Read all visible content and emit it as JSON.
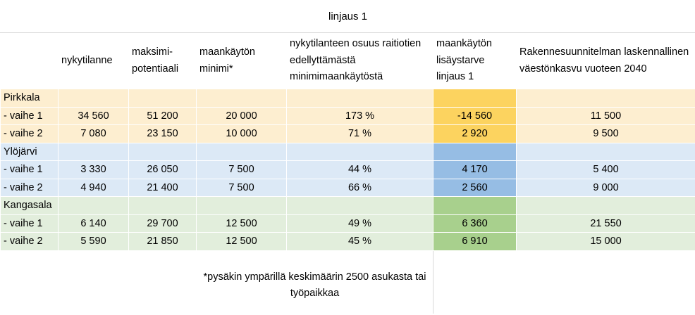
{
  "title": "linjaus 1",
  "headers": {
    "c1": "nykytilanne",
    "c2": "maksimi-potentiaali",
    "c3": "maankäytön minimi*",
    "c4": "nykytilanteen osuus raitiotien edellyttämästä minimimaankäytöstä",
    "c5": "maankäytön lisäystarve linjaus 1",
    "c6": "Rakennesuunnitelman laskennallinen väestönkasvu vuoteen 2040"
  },
  "groups": {
    "pirkkala": {
      "name": "Pirkkala",
      "rows": [
        {
          "label": "- vaihe 1",
          "c1": "34 560",
          "c2": "51 200",
          "c3": "20 000",
          "c4": "173 %",
          "c5": "-14 560",
          "c6": "11 500"
        },
        {
          "label": "- vaihe 2",
          "c1": "7 080",
          "c2": "23 150",
          "c3": "10 000",
          "c4": "71 %",
          "c5": "2 920",
          "c6": "9 500"
        }
      ]
    },
    "ylojarvi": {
      "name": "Ylöjärvi",
      "rows": [
        {
          "label": "- vaihe 1",
          "c1": "3 330",
          "c2": "26 050",
          "c3": "7 500",
          "c4": "44 %",
          "c5": "4 170",
          "c6": "5 400"
        },
        {
          "label": "- vaihe 2",
          "c1": "4 940",
          "c2": "21 400",
          "c3": "7 500",
          "c4": "66 %",
          "c5": "2 560",
          "c6": "9 000"
        }
      ]
    },
    "kangasala": {
      "name": "Kangasala",
      "rows": [
        {
          "label": "- vaihe 1",
          "c1": "6 140",
          "c2": "29 700",
          "c3": "12 500",
          "c4": "49 %",
          "c5": "6 360",
          "c6": "21 550"
        },
        {
          "label": "- vaihe 2",
          "c1": "5 590",
          "c2": "21 850",
          "c3": "12 500",
          "c4": "45 %",
          "c5": "6 910",
          "c6": "15 000"
        }
      ]
    }
  },
  "footnote": "*pysäkin ympärillä keskimäärin 2500 asukasta tai työpaikkaa",
  "colors": {
    "pirkkala_bg": "#fdeed0",
    "pirkkala_highlight": "#fcd35f",
    "ylojarvi_bg": "#dce9f6",
    "ylojarvi_highlight": "#96bde4",
    "kangasala_bg": "#e2eedc",
    "kangasala_highlight": "#a8d08d"
  }
}
